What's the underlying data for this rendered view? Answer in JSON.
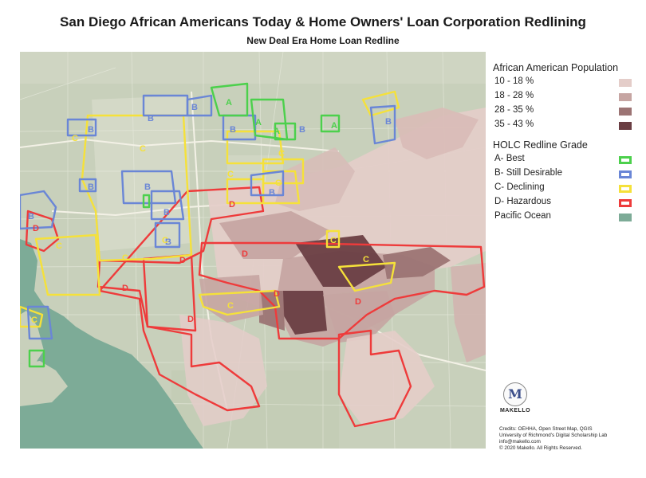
{
  "title": "San Diego African Americans Today & Home Owners' Loan Corporation Redlining",
  "subtitle": "New Deal Era Home Loan Redline",
  "legend": {
    "population_title": "African American Population",
    "population_items": [
      {
        "label": "10 - 18 %",
        "color": "#e4cdc9"
      },
      {
        "label": "18 - 28 %",
        "color": "#c6a5a2"
      },
      {
        "label": "28 - 35 %",
        "color": "#9c7474"
      },
      {
        "label": "35 - 43 %",
        "color": "#6a3e43"
      }
    ],
    "grade_title": "HOLC Redline Grade",
    "grade_items": [
      {
        "label": "A- Best",
        "color": "#4cd04c"
      },
      {
        "label": "B- Still Desirable",
        "color": "#6a86d6"
      },
      {
        "label": "C- Declining",
        "color": "#f5e13a"
      },
      {
        "label": "D- Hazardous",
        "color": "#ee3b3b"
      }
    ],
    "ocean_label": "Pacific Ocean",
    "ocean_color": "#7dab97"
  },
  "map_labels": {
    "a": "A",
    "b": "B",
    "c": "C",
    "d": "D"
  },
  "logo": {
    "mark": "M",
    "name": "MAKELLO"
  },
  "credits": [
    "Credits: OEHHA, Open Street Map, QGIS",
    "University of Richmond's Digital Scholarship Lab",
    "info@makello.com",
    "© 2020 Makello. All Rights Reserved."
  ]
}
